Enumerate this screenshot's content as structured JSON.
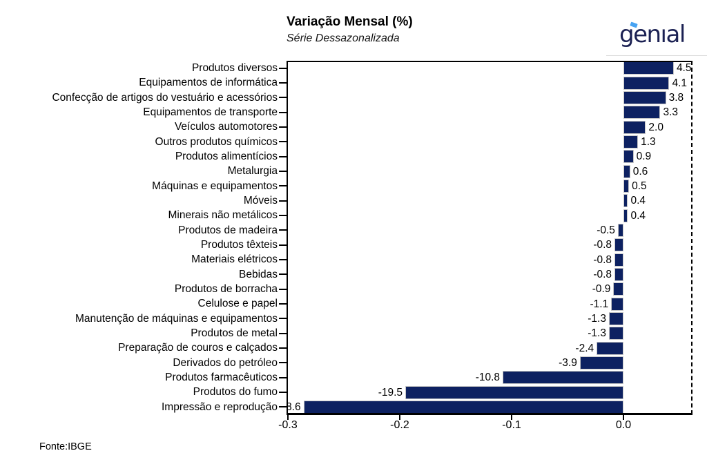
{
  "header": {
    "title": "Variação Mensal (%)",
    "subtitle": "Série Dessazonalizada",
    "logo_text": "genıal"
  },
  "footer": {
    "source": "Fonte:IBGE"
  },
  "colors": {
    "bar": "#0d2161",
    "logo_navy": "#1b2153",
    "logo_accent": "#47a3f2"
  },
  "chart_data": {
    "type": "bar",
    "orientation": "horizontal",
    "title": "Variação Mensal (%)",
    "subtitle": "Série Dessazonalizada",
    "unit": "percent",
    "grid": false,
    "legend": "none",
    "categories": [
      "Produtos diversos",
      "Equipamentos de informática",
      "Confecção de artigos do vestuário e acessórios",
      "Equipamentos de transporte",
      "Veículos automotores",
      "Outros produtos químicos",
      "Produtos alimentícios",
      "Metalurgia",
      "Máquinas e equipamentos",
      "Móveis",
      "Minerais não metálicos",
      "Produtos de madeira",
      "Produtos têxteis",
      "Materiais elétricos",
      "Bebidas",
      "Produtos de borracha",
      "Celulose e papel",
      "Manutenção de máquinas e equipamentos",
      "Produtos de metal",
      "Preparação de couros e calçados",
      "Derivados do petróleo",
      "Produtos farmacêuticos",
      "Produtos do fumo",
      "Impressão e reprodução"
    ],
    "values": [
      4.5,
      4.1,
      3.8,
      3.3,
      2.0,
      1.3,
      0.9,
      0.6,
      0.5,
      0.4,
      0.4,
      -0.5,
      -0.8,
      -0.8,
      -0.8,
      -0.9,
      -1.1,
      -1.3,
      -1.3,
      -2.4,
      -3.9,
      -10.8,
      -19.5,
      -28.6
    ],
    "x_tick_labels": [
      "-0.3",
      "-0.2",
      "-0.1",
      "0.0"
    ],
    "x_tick_values": [
      -0.3,
      -0.2,
      -0.1,
      0.0
    ],
    "xlim": [
      -0.3012,
      0.0617
    ],
    "bar_color": "#0d2161",
    "source": "Fonte:IBGE"
  }
}
